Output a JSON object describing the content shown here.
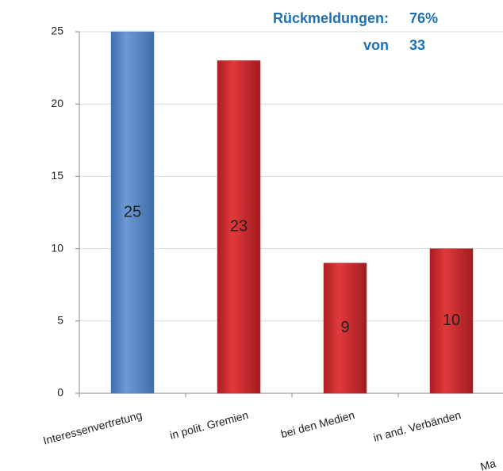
{
  "chart_data": {
    "type": "bar",
    "annotations": [
      "Rückmeldungen:",
      "76%",
      "von",
      "33"
    ],
    "categories": [
      "Interessenvertretung",
      "in polit. Gremien",
      "bei den Medien",
      "in and. Verbänden",
      "Ma"
    ],
    "values": [
      25,
      23,
      9,
      10,
      null
    ],
    "colors": [
      "#4f81bd",
      "#c0272d",
      "#c0272d",
      "#c0272d",
      "#c0272d"
    ],
    "ylim": [
      0,
      25
    ],
    "yticks": [
      0,
      5,
      10,
      15,
      20,
      25
    ],
    "grid": true
  }
}
